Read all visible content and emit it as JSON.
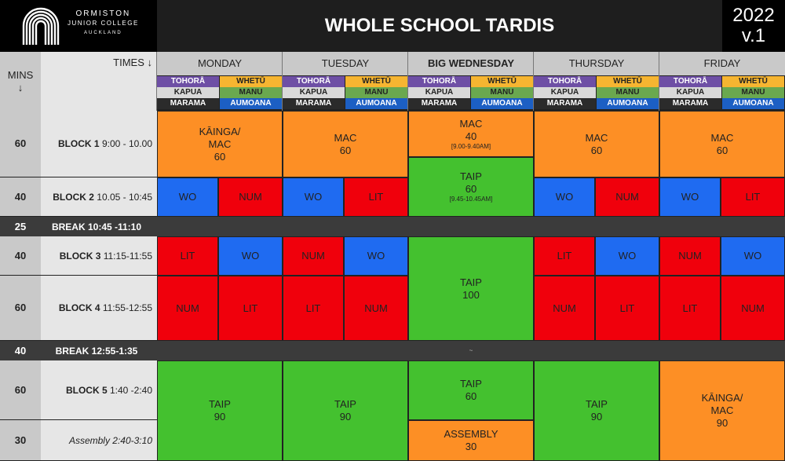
{
  "header": {
    "logo": {
      "line1": "ORMISTON",
      "line2": "JUNIOR COLLEGE",
      "line3": "AUCKLAND",
      "icon": "fingerprint-arch-icon"
    },
    "title": "WHOLE SCHOOL TARDIS",
    "version_year": "2022",
    "version_label": "v.1"
  },
  "labels": {
    "mins": "MINS",
    "mins_arrow": "↓",
    "times": "TIMES ↓"
  },
  "days": [
    "MONDAY",
    "TUESDAY",
    "BIG WEDNESDAY",
    "THURSDAY",
    "FRIDAY"
  ],
  "houses": [
    "TOHORĀ",
    "WHETŪ",
    "KAPUA",
    "MANU",
    "MARAMA",
    "AUMOANA"
  ],
  "rows": [
    {
      "mins": "60",
      "time_bold": "BLOCK 1",
      "time_rest": " 9:00 - 10.00"
    },
    {
      "mins": "40",
      "time_bold": "BLOCK 2",
      "time_rest": " 10.05 - 10:45"
    },
    {
      "mins": "25",
      "time_bold": "BREAK 10:45 -11:10",
      "time_rest": ""
    },
    {
      "mins": "40",
      "time_bold": "BLOCK 3",
      "time_rest": " 11:15-11:55"
    },
    {
      "mins": "60",
      "time_bold": "BLOCK 4",
      "time_rest": " 11:55-12:55"
    },
    {
      "mins": "40",
      "time_bold": "BREAK 12:55-1:35",
      "time_rest": ""
    },
    {
      "mins": "60",
      "time_bold": "BLOCK 5",
      "time_rest": " 1:40 -2:40"
    },
    {
      "mins": "30",
      "time_bold": "",
      "time_rest": "Assembly 2:40-3:10"
    }
  ],
  "lessons": {
    "kainga_mac": "KĀINGA/ MAC",
    "mac": "MAC",
    "wo": "WO",
    "num": "NUM",
    "lit": "LIT",
    "taip": "TAIP",
    "assembly": "ASSEMBLY",
    "n60": "60",
    "n40": "40",
    "n100": "100",
    "n90": "90",
    "n30": "30",
    "mac_wed_time": "[9.00-9.40AM]",
    "taip_wed_time": "[9.45-10.45AM]",
    "break_mark": "~"
  },
  "colors": {
    "orange": "#fd8f25",
    "green": "#44c12f",
    "blue": "#1f6bf1",
    "red": "#f0000c",
    "gray_dark": "#3b3b3b",
    "gray_light": "#c9c9c9",
    "tohora": "#6e4fa5",
    "whetu": "#f6b531",
    "kapua": "#d9d9d9",
    "manu": "#6aa84f",
    "marama": "#2b2b2b",
    "aumoana": "#1c5fc4"
  }
}
